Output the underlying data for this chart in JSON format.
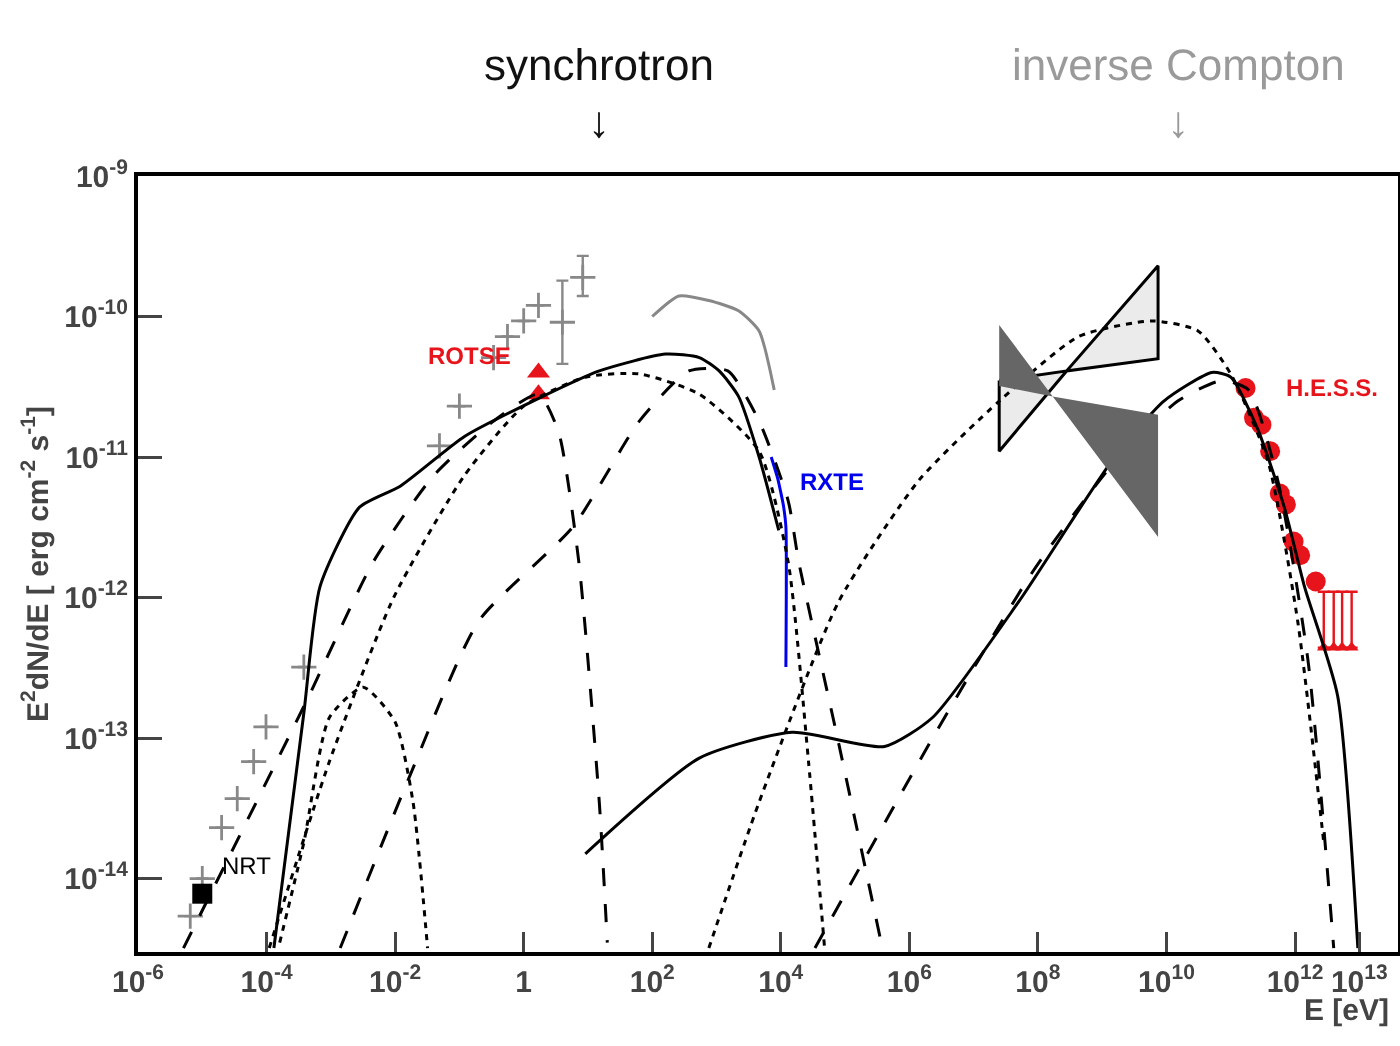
{
  "chart_data": {
    "type": "scatter",
    "xlabel": "E [eV]",
    "ylabel": "E$^{2}$dN/dE [ erg cm$^{-2}$ s$^{-1}$]",
    "annotations": [
      "synchrotron\n↓",
      "inverse Compton\n↓"
    ],
    "log": "xy",
    "grid": false,
    "xlim": [
      1e-06,
      40000000000000.0
    ],
    "xticks": [
      {
        "value": 1e-06,
        "label": "10$^{-6}$"
      },
      {
        "value": 0.0001,
        "label": "10$^{-4}$"
      },
      {
        "value": 0.01,
        "label": "10$^{-2}$"
      },
      1,
      {
        "value": 100.0,
        "label": "10$^{2}$"
      },
      {
        "value": 10000.0,
        "label": "10$^{4}$"
      },
      {
        "value": 1000000.0,
        "label": "10$^{6}$"
      },
      {
        "value": 100000000.0,
        "label": "10$^{8}$"
      },
      {
        "value": 10000000000.0,
        "label": "10$^{10}$"
      },
      {
        "value": 1000000000000.0,
        "label": "10$^{12}$"
      },
      {
        "value": 10000000000000.0,
        "label": "10$^{13}$"
      }
    ],
    "ylim": [
      3e-15,
      1e-09
    ],
    "yticks": [
      {
        "value": 1e-14,
        "label": "10$^{-14}$"
      },
      {
        "value": 1e-13,
        "label": "10$^{-13}$"
      },
      {
        "value": 1e-12,
        "label": "10$^{-12}$"
      },
      {
        "value": 1e-11,
        "label": "10$^{-11}$"
      },
      {
        "value": 1e-10,
        "label": "10$^{-10}$"
      },
      {
        "value": 1e-09,
        "label": "10$^{-9}$"
      }
    ],
    "series": [
      {
        "type": "scatter",
        "marker": "cross",
        "color": "#888888",
        "x": [
          6.5e-06,
          1e-05,
          2e-05,
          3.5e-05,
          6.3e-05,
          9.8e-05,
          0.00038,
          0.049,
          0.1,
          0.34,
          0.56,
          1.0,
          1.7,
          4.0,
          8.3
        ],
        "values": [
          5.4e-15,
          1e-14,
          2.3e-14,
          3.7e-14,
          6.8e-14,
          1.2e-13,
          3.2e-13,
          1.2e-11,
          2.3e-11,
          5.1e-11,
          7.2e-11,
          9.3e-11,
          1.2e-10,
          9.1e-11,
          1.9e-10
        ],
        "errors": [
          null,
          null,
          null,
          null,
          null,
          null,
          null,
          null,
          null,
          null,
          null,
          null,
          null,
          [
            4.6e-11,
            1.8e-10
          ],
          [
            1.4e-10,
            2.7e-10
          ]
        ]
      },
      {
        "type": "line",
        "line_style": "solid",
        "color": "#888888",
        "x": [
          100,
          260,
          760,
          2200,
          4600,
          7900
        ],
        "values": [
          1e-10,
          1.4e-10,
          1.3e-10,
          1.1e-10,
          7.9e-11,
          3e-11
        ]
      },
      {
        "type": "scatter",
        "name": "ROTSE",
        "marker": "triangle",
        "color": "#e8141b",
        "x": [
          1.7,
          1.7
        ],
        "values": [
          4e-11,
          2.8e-11
        ]
      },
      {
        "type": "scatter",
        "name": "NRT",
        "marker": "square",
        "color": "#000000",
        "x": [
          1e-05
        ],
        "values": [
          7.8e-15
        ]
      },
      {
        "type": "line",
        "name": "RXTE",
        "line_style": "solid",
        "color": "#0000ee",
        "x": [
          7100,
          8900,
          10000.0,
          11000.0,
          12000.0,
          12000.0
        ],
        "values": [
          1e-11,
          7.1e-12,
          5.6e-12,
          4.5e-12,
          3.2e-12,
          3.2e-13
        ]
      },
      {
        "type": "scatter",
        "name": "H.E.S.S.",
        "marker": "circle",
        "color": "#e8141b",
        "x": [
          170000000000.0,
          230000000000.0,
          300000000000.0,
          410000000000.0,
          580000000000.0,
          720000000000.0,
          950000000000.0,
          1200000000000.0,
          2100000000000.0
        ],
        "values": [
          3.1e-11,
          1.9e-11,
          1.7e-11,
          1.1e-11,
          5.5e-12,
          4.6e-12,
          2.5e-12,
          2e-12,
          1.3e-12
        ]
      },
      {
        "type": "scatter",
        "marker": "triangle",
        "color": "#e8141b",
        "x": [
          2800000000000.0,
          4000000000000.0,
          5400000000000.0,
          7600000000000.0
        ],
        "values": [
          4.4e-13,
          4.4e-13,
          4.4e-13,
          4.4e-13
        ],
        "errors": [
          [
            4.4e-13,
            1.1e-12
          ],
          [
            4.4e-13,
            1.1e-12
          ],
          [
            4.4e-13,
            1.1e-12
          ],
          [
            4.4e-13,
            1.1e-12
          ]
        ]
      },
      {
        "type": "line",
        "line_style": "solid",
        "color": "#000000",
        "x": [
          0.00013,
          0.00038,
          0.00068,
          0.0028,
          0.012,
          0.12,
          1.4,
          15,
          160,
          540,
          1100,
          2200,
          4600,
          9300
        ],
        "values": [
          3.2e-15,
          1.5e-13,
          1.2e-12,
          4.4e-12,
          6.2e-12,
          1.4e-11,
          2.5e-11,
          4.1e-11,
          5.4e-11,
          5.1e-11,
          4.1e-11,
          2.7e-11,
          1e-11,
          3e-12
        ]
      },
      {
        "type": "line",
        "line_style": "solid",
        "color": "#000000",
        "x": [
          9.1,
          540,
          15000.0,
          410000.0,
          2300000.0,
          50000000.0,
          1400000000.0,
          9100000000.0,
          51000000000.0,
          100000000000.0,
          260000000000.0,
          680000000000.0,
          1400000000000.0,
          4600000000000.0,
          9500000000000.0
        ],
        "values": [
          1.5e-14,
          7.2e-14,
          1.1e-13,
          8.7e-14,
          1.4e-13,
          9.3e-13,
          9.3e-12,
          2.5e-11,
          4e-11,
          3.7e-11,
          1.6e-11,
          4.4e-12,
          1.2e-12,
          2e-13,
          3.2e-15
        ]
      },
      {
        "type": "line",
        "line_style": "dashed",
        "color": "#000000",
        "x": [
          5.1e-06,
          0.00041,
          0.0046,
          0.04,
          0.34,
          1.7,
          3.5,
          7.2,
          15,
          20
        ],
        "values": [
          3.2e-15,
          1.8e-13,
          1.8e-12,
          7.4e-12,
          1.8e-11,
          2.8e-11,
          1.5e-11,
          1.8e-12,
          3.5e-14,
          3.5e-15
        ]
      },
      {
        "type": "line",
        "line_style": "dashed",
        "color": "#000000",
        "x": [
          0.0014,
          0.017,
          0.2,
          5.9,
          63,
          370,
          1500,
          4600,
          13000.0,
          19000.0,
          79000.0,
          380000.0
        ],
        "values": [
          3.2e-15,
          5.4e-14,
          6.8e-13,
          3.2e-12,
          1.8e-11,
          4.1e-11,
          4.1e-11,
          1.8e-11,
          4.9e-12,
          1.8e-12,
          9.3e-14,
          3.2e-15
        ]
      },
      {
        "type": "line",
        "line_style": "dashed",
        "color": "#000000",
        "x": [
          34000.0,
          2300000.0,
          81000000.0,
          1400000000.0,
          15000000000.0,
          72000000000.0,
          190000000000.0,
          540000000000.0,
          1600000000000.0,
          4000000000000.0
        ],
        "values": [
          3.2e-15,
          1e-13,
          1.5e-12,
          8.7e-12,
          2.5e-11,
          3.5e-11,
          3e-11,
          6.8e-12,
          3.5e-13,
          3.2e-15
        ]
      },
      {
        "type": "line",
        "line_style": "dotted",
        "color": "#000000",
        "x": [
          0.00016,
          0.00038,
          0.00095,
          0.0032,
          0.01,
          0.019,
          0.032
        ],
        "values": [
          3.5e-15,
          1.8e-14,
          1.4e-13,
          2.3e-13,
          1.3e-13,
          3.5e-14,
          3.2e-15
        ]
      },
      {
        "type": "line",
        "line_style": "dotted",
        "color": "#000000",
        "x": [
          0.00011,
          0.00095,
          0.0095,
          0.12,
          1.0,
          9.1,
          63,
          540,
          4600,
          13000.0,
          27000.0,
          48000.0
        ],
        "values": [
          3.2e-15,
          6.8e-14,
          1e-12,
          7.4e-12,
          2.3e-11,
          3.7e-11,
          3.9e-11,
          2.8e-11,
          1.1e-11,
          1.8e-12,
          6.8e-14,
          3.2e-15
        ]
      },
      {
        "type": "line",
        "line_style": "dotted",
        "color": "#000000",
        "x": [
          760,
          4600,
          79000.0,
          1400000.0,
          25000000.0,
          430000000.0,
          6000000000.0,
          31000000000.0,
          100000000000.0,
          380000000000.0,
          1100000000000.0,
          2800000000000.0
        ],
        "values": [
          3.2e-15,
          3.5e-14,
          9.3e-13,
          6.8e-12,
          2.5e-11,
          7.2e-11,
          9.3e-11,
          7.9e-11,
          3.9e-11,
          9.3e-12,
          6.8e-13,
          1.8e-14
        ]
      },
      {
        "type": "line",
        "color": "#000000",
        "x": [
          25000000.0,
          280000000.0,
          7400000000.0
        ],
        "values": [
          null,
          null,
          null
        ],
        "lower": [
          1.1e-11,
          4.1e-11,
          5e-11
        ],
        "upper": [
          3.5e-11,
          4.1e-11,
          2.3e-10
        ]
      },
      {
        "type": "area",
        "color": "#666666",
        "x": [
          25000000.0,
          170000000.0,
          7400000000.0
        ],
        "values": [
          null,
          null,
          null
        ],
        "lower": [
          3.2e-11,
          2.7e-11,
          2.7e-12
        ],
        "upper": [
          8.7e-11,
          2.7e-11,
          2e-11
        ]
      }
    ]
  }
}
